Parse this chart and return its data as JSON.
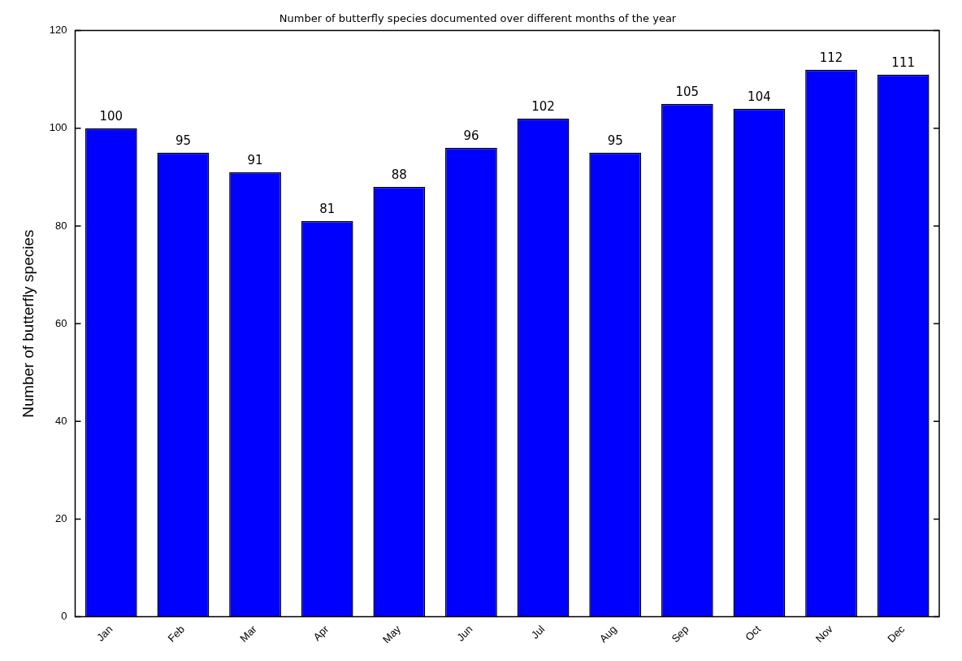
{
  "chart_data": {
    "type": "bar",
    "title": "Number of butterfly species documented over different months of the year",
    "ylabel": "Number of butterfly species",
    "categories": [
      "Jan",
      "Feb",
      "Mar",
      "Apr",
      "May",
      "Jun",
      "Jul",
      "Aug",
      "Sep",
      "Oct",
      "Nov",
      "Dec"
    ],
    "values": [
      100,
      95,
      91,
      81,
      88,
      96,
      102,
      95,
      105,
      104,
      112,
      111
    ],
    "color": "#0000ff",
    "ylim": [
      0,
      120
    ],
    "yticks": [
      0,
      20,
      40,
      60,
      80,
      100,
      120
    ],
    "data_labels": true,
    "grid": false,
    "legend": false
  }
}
